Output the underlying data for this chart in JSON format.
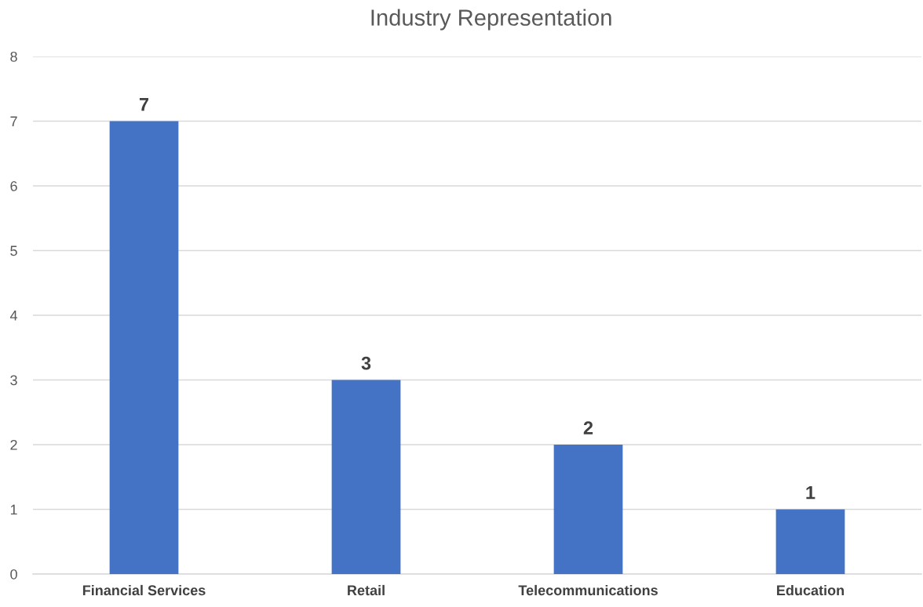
{
  "chart_data": {
    "type": "bar",
    "title": "Industry Representation",
    "categories": [
      "Financial Services",
      "Retail",
      "Telecommunications",
      "Education"
    ],
    "values": [
      7,
      3,
      2,
      1
    ],
    "color": "#4472c4",
    "ylim": [
      0,
      8
    ],
    "yticks": [
      0,
      1,
      2,
      3,
      4,
      5,
      6,
      7,
      8
    ],
    "grid": "y",
    "data_labels": true,
    "legend": false
  }
}
